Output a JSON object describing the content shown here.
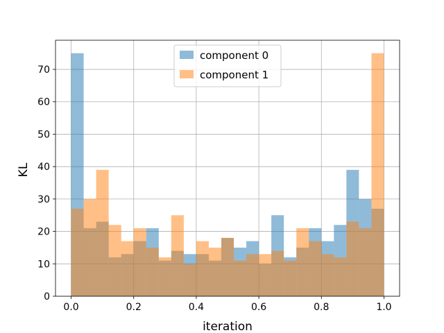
{
  "chart_data": {
    "type": "bar",
    "subtype": "overlapping-histogram",
    "xlabel": "iteration",
    "ylabel": "KL",
    "xlim": [
      -0.05,
      1.05
    ],
    "ylim": [
      0,
      79
    ],
    "xticks": [
      "0.0",
      "0.2",
      "0.4",
      "0.6",
      "0.8",
      "1.0"
    ],
    "yticks": [
      "0",
      "10",
      "20",
      "30",
      "40",
      "50",
      "60",
      "70"
    ],
    "grid": true,
    "legend_position": "top-center",
    "bin_edges": [
      0.0,
      0.04,
      0.08,
      0.12,
      0.16,
      0.2,
      0.24,
      0.28,
      0.32,
      0.36,
      0.4,
      0.44,
      0.48,
      0.52,
      0.56,
      0.6,
      0.64,
      0.68,
      0.72,
      0.76,
      0.8,
      0.84,
      0.88,
      0.92,
      0.96,
      1.0
    ],
    "series": [
      {
        "name": "component 0",
        "color": "#1f77b4",
        "alpha": 0.5,
        "values": [
          75,
          21,
          23,
          12,
          13,
          17,
          21,
          11,
          14,
          13,
          13,
          11,
          18,
          15,
          17,
          10,
          25,
          12,
          15,
          21,
          17,
          22,
          39,
          30,
          27
        ]
      },
      {
        "name": "component 1",
        "color": "#ff7f0e",
        "alpha": 0.5,
        "values": [
          27,
          30,
          39,
          22,
          17,
          21,
          15,
          12,
          25,
          10,
          17,
          15,
          18,
          11,
          13,
          13,
          14,
          11,
          21,
          17,
          13,
          12,
          23,
          21,
          75
        ]
      }
    ]
  }
}
